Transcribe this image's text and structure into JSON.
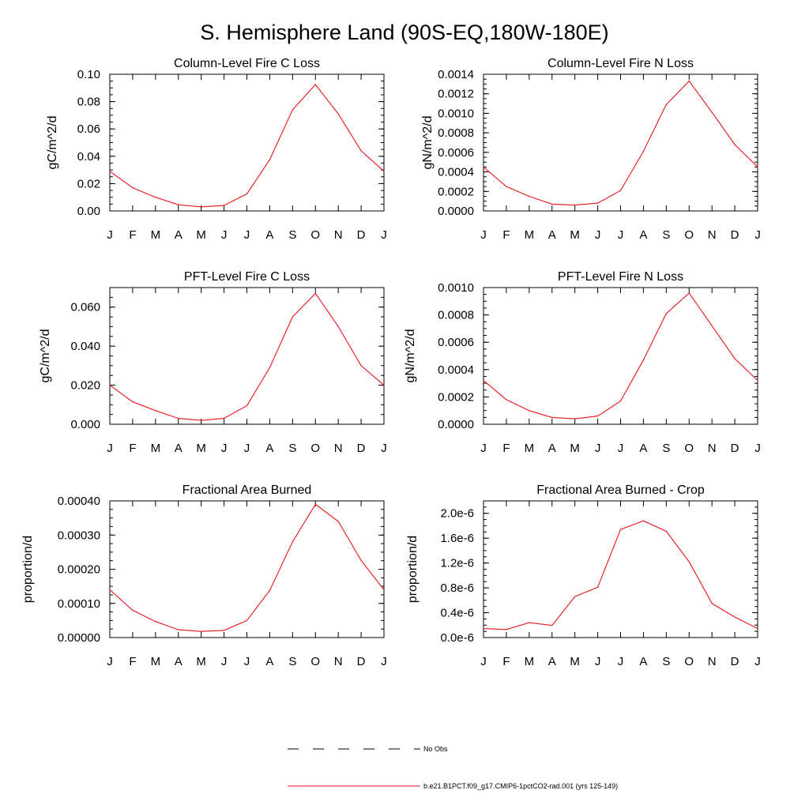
{
  "figure": {
    "title": "S. Hemisphere Land (90S-EQ,180W-180E)"
  },
  "colors": {
    "model_line": "#e8141c",
    "obs_line": "#000000",
    "axis": "#000000"
  },
  "legend": {
    "entries": [
      {
        "label": "No Obs",
        "style": "dashed",
        "color": "#000000"
      },
      {
        "label": "b.e21.B1PCT.f09_g17.CMIP6-1pctCO2-rad.001 (yrs 125-149)",
        "style": "solid",
        "color": "#e8141c"
      }
    ]
  },
  "chart_data": [
    {
      "type": "line",
      "title": "Column-Level Fire C Loss",
      "ylabel": "gC/m^2/d",
      "xlabel": "",
      "categories": [
        "J",
        "F",
        "M",
        "A",
        "M",
        "J",
        "J",
        "A",
        "S",
        "O",
        "N",
        "D",
        "J"
      ],
      "ylim": [
        0,
        0.1
      ],
      "yticks": [
        0,
        0.02,
        0.04,
        0.06,
        0.08,
        0.1
      ],
      "ytick_labels": [
        "0.00",
        "0.02",
        "0.04",
        "0.06",
        "0.08",
        "0.10"
      ],
      "series": [
        {
          "name": "b.e21.B1PCT.f09_g17.CMIP6-1pctCO2-rad.001 (yrs 125-149)",
          "values": [
            0.029,
            0.017,
            0.01,
            0.0045,
            0.003,
            0.004,
            0.0125,
            0.0375,
            0.074,
            0.0925,
            0.071,
            0.044,
            0.029
          ]
        }
      ]
    },
    {
      "type": "line",
      "title": "Column-Level Fire N Loss",
      "ylabel": "gN/m^2/d",
      "xlabel": "",
      "categories": [
        "J",
        "F",
        "M",
        "A",
        "M",
        "J",
        "J",
        "A",
        "S",
        "O",
        "N",
        "D",
        "J"
      ],
      "ylim": [
        0,
        0.0014
      ],
      "yticks": [
        0,
        0.0002,
        0.0004,
        0.0006,
        0.0008,
        0.001,
        0.0012,
        0.0014
      ],
      "ytick_labels": [
        "0.0000",
        "0.0002",
        "0.0004",
        "0.0006",
        "0.0008",
        "0.0010",
        "0.0012",
        "0.0014"
      ],
      "series": [
        {
          "name": "b.e21.B1PCT.f09_g17.CMIP6-1pctCO2-rad.001 (yrs 125-149)",
          "values": [
            0.00045,
            0.00025,
            0.00015,
            7e-05,
            6e-05,
            8e-05,
            0.00021,
            0.00061,
            0.00109,
            0.00133,
            0.00101,
            0.00068,
            0.00045
          ]
        }
      ]
    },
    {
      "type": "line",
      "title": "PFT-Level Fire C Loss",
      "ylabel": "gC/m^2/d",
      "xlabel": "",
      "categories": [
        "J",
        "F",
        "M",
        "A",
        "M",
        "J",
        "J",
        "A",
        "S",
        "O",
        "N",
        "D",
        "J"
      ],
      "ylim": [
        0,
        0.07
      ],
      "yticks": [
        0,
        0.02,
        0.04,
        0.06
      ],
      "ytick_labels": [
        "0.000",
        "0.020",
        "0.040",
        "0.060"
      ],
      "series": [
        {
          "name": "b.e21.B1PCT.f09_g17.CMIP6-1pctCO2-rad.001 (yrs 125-149)",
          "values": [
            0.02,
            0.0115,
            0.007,
            0.003,
            0.002,
            0.003,
            0.0095,
            0.029,
            0.055,
            0.067,
            0.05,
            0.03,
            0.02
          ]
        }
      ]
    },
    {
      "type": "line",
      "title": "PFT-Level Fire N Loss",
      "ylabel": "gN/m^2/d",
      "xlabel": "",
      "categories": [
        "J",
        "F",
        "M",
        "A",
        "M",
        "J",
        "J",
        "A",
        "S",
        "O",
        "N",
        "D",
        "J"
      ],
      "ylim": [
        0,
        0.001
      ],
      "yticks": [
        0,
        0.0002,
        0.0004,
        0.0006,
        0.0008,
        0.001
      ],
      "ytick_labels": [
        "0.0000",
        "0.0002",
        "0.0004",
        "0.0006",
        "0.0008",
        "0.0010"
      ],
      "series": [
        {
          "name": "b.e21.B1PCT.f09_g17.CMIP6-1pctCO2-rad.001 (yrs 125-149)",
          "values": [
            0.00032,
            0.00018,
            0.0001,
            5e-05,
            4e-05,
            6e-05,
            0.00017,
            0.00047,
            0.00081,
            0.00096,
            0.00072,
            0.00048,
            0.00032
          ]
        }
      ]
    },
    {
      "type": "line",
      "title": "Fractional Area Burned",
      "ylabel": "proportion/d",
      "xlabel": "",
      "categories": [
        "J",
        "F",
        "M",
        "A",
        "M",
        "J",
        "J",
        "A",
        "S",
        "O",
        "N",
        "D",
        "J"
      ],
      "ylim": [
        0,
        0.0004
      ],
      "yticks": [
        0,
        0.0001,
        0.0002,
        0.0003,
        0.0004
      ],
      "ytick_labels": [
        "0.00000",
        "0.00010",
        "0.00020",
        "0.00030",
        "0.00040"
      ],
      "series": [
        {
          "name": "b.e21.B1PCT.f09_g17.CMIP6-1pctCO2-rad.001 (yrs 125-149)",
          "values": [
            0.00014,
            8e-05,
            4.7e-05,
            2.3e-05,
            1.8e-05,
            2.1e-05,
            5e-05,
            0.000138,
            0.00028,
            0.00039,
            0.00034,
            0.000226,
            0.00014
          ]
        }
      ]
    },
    {
      "type": "line",
      "title": "Fractional Area Burned - Crop",
      "ylabel": "proportion/d",
      "xlabel": "",
      "categories": [
        "J",
        "F",
        "M",
        "A",
        "M",
        "J",
        "J",
        "A",
        "S",
        "O",
        "N",
        "D",
        "J"
      ],
      "ylim": [
        0,
        2.2e-06
      ],
      "yticks": [
        0,
        4e-07,
        8e-07,
        1.2e-06,
        1.6e-06,
        2e-06
      ],
      "ytick_labels": [
        "0.0e-6",
        "0.4e-6",
        "0.8e-6",
        "1.2e-6",
        "1.6e-6",
        "2.0e-6"
      ],
      "series": [
        {
          "name": "b.e21.B1PCT.f09_g17.CMIP6-1pctCO2-rad.001 (yrs 125-149)",
          "values": [
            1.45e-07,
            1.3e-07,
            2.4e-07,
            1.95e-07,
            6.6e-07,
            8.1e-07,
            1.74e-06,
            1.88e-06,
            1.71e-06,
            1.22e-06,
            5.5e-07,
            3.3e-07,
            1.45e-07
          ]
        }
      ]
    }
  ]
}
